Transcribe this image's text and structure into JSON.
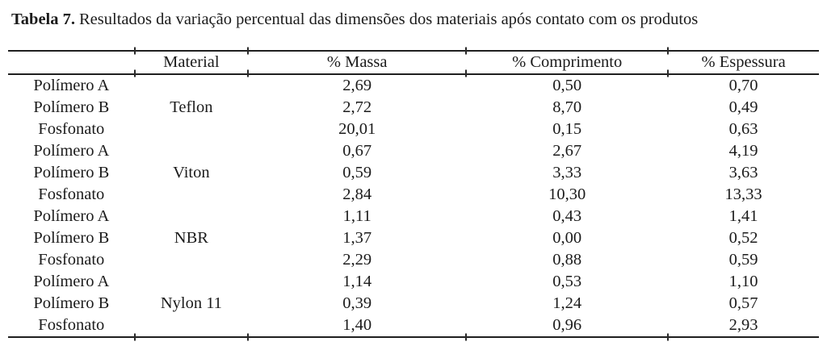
{
  "title": {
    "label": "Tabela 7.",
    "text": "Resultados da variação percentual das dimensões dos materiais após contato com os produtos"
  },
  "table": {
    "columns": [
      "",
      "Material",
      "% Massa",
      "% Comprimento",
      "% Espessura"
    ],
    "rows": [
      {
        "sample": "Polímero A",
        "material": "",
        "massa": "2,69",
        "comprimento": "0,50",
        "espessura": "0,70"
      },
      {
        "sample": "Polímero B",
        "material": "Teflon",
        "massa": "2,72",
        "comprimento": "8,70",
        "espessura": "0,49"
      },
      {
        "sample": "Fosfonato",
        "material": "",
        "massa": "20,01",
        "comprimento": "0,15",
        "espessura": "0,63"
      },
      {
        "sample": "Polímero A",
        "material": "",
        "massa": "0,67",
        "comprimento": "2,67",
        "espessura": "4,19"
      },
      {
        "sample": "Polímero B",
        "material": "Viton",
        "massa": "0,59",
        "comprimento": "3,33",
        "espessura": "3,63"
      },
      {
        "sample": "Fosfonato",
        "material": "",
        "massa": "2,84",
        "comprimento": "10,30",
        "espessura": "13,33"
      },
      {
        "sample": "Polímero A",
        "material": "",
        "massa": "1,11",
        "comprimento": "0,43",
        "espessura": "1,41"
      },
      {
        "sample": "Polímero B",
        "material": "NBR",
        "massa": "1,37",
        "comprimento": "0,00",
        "espessura": "0,52"
      },
      {
        "sample": "Fosfonato",
        "material": "",
        "massa": "2,29",
        "comprimento": "0,88",
        "espessura": "0,59"
      },
      {
        "sample": "Polímero A",
        "material": "",
        "massa": "1,14",
        "comprimento": "0,53",
        "espessura": "1,10"
      },
      {
        "sample": "Polímero B",
        "material": "Nylon 11",
        "massa": "0,39",
        "comprimento": "1,24",
        "espessura": "0,57"
      },
      {
        "sample": "Fosfonato",
        "material": "",
        "massa": "1,40",
        "comprimento": "0,96",
        "espessura": "2,93"
      }
    ]
  }
}
